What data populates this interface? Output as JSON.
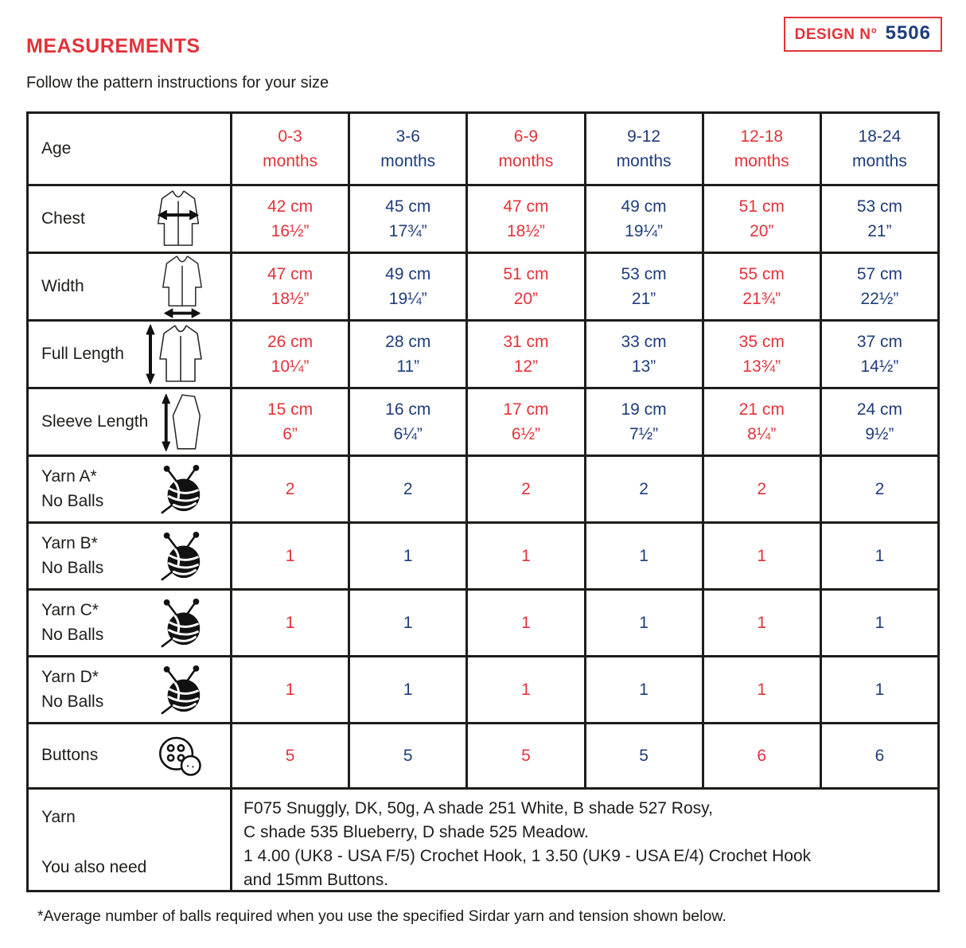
{
  "page": {
    "title": "MEASUREMENTS",
    "subtitle": "Follow the pattern instructions for your size",
    "design_box": {
      "label": "DESIGN N°",
      "number": "5506"
    },
    "footnote": "*Average number of balls required when you use the specified Sirdar yarn and tension shown below."
  },
  "colors": {
    "red": "#e2333a",
    "navy": "#1e3d7b",
    "ink": "#1d1d1b"
  },
  "icons": [
    "jacket-chest-arrow-icon",
    "jacket-width-arrow-icon",
    "jacket-length-arrow-icon",
    "sleeve-length-arrow-icon",
    "yarn-ball-icon",
    "buttons-icon"
  ],
  "table": {
    "age_row": {
      "label": "Age",
      "columns": [
        {
          "range": "0-3",
          "unit": "months"
        },
        {
          "range": "3-6",
          "unit": "months"
        },
        {
          "range": "6-9",
          "unit": "months"
        },
        {
          "range": "9-12",
          "unit": "months"
        },
        {
          "range": "12-18",
          "unit": "months"
        },
        {
          "range": "18-24",
          "unit": "months"
        }
      ]
    },
    "measurement_rows": [
      {
        "label": "Chest",
        "icon": "jacket-chest-arrow-icon",
        "values": [
          {
            "cm": "42 cm",
            "in": "16½”"
          },
          {
            "cm": "45 cm",
            "in": "17¾”"
          },
          {
            "cm": "47 cm",
            "in": "18½”"
          },
          {
            "cm": "49 cm",
            "in": "19¼”"
          },
          {
            "cm": "51 cm",
            "in": "20”"
          },
          {
            "cm": "53 cm",
            "in": "21”"
          }
        ]
      },
      {
        "label": "Width",
        "icon": "jacket-width-arrow-icon",
        "values": [
          {
            "cm": "47 cm",
            "in": "18½”"
          },
          {
            "cm": "49 cm",
            "in": "19¼”"
          },
          {
            "cm": "51 cm",
            "in": "20”"
          },
          {
            "cm": "53 cm",
            "in": "21”"
          },
          {
            "cm": "55 cm",
            "in": "21¾”"
          },
          {
            "cm": "57 cm",
            "in": "22½”"
          }
        ]
      },
      {
        "label": "Full Length",
        "icon": "jacket-length-arrow-icon",
        "values": [
          {
            "cm": "26 cm",
            "in": "10¼”"
          },
          {
            "cm": "28 cm",
            "in": "11”"
          },
          {
            "cm": "31 cm",
            "in": "12”"
          },
          {
            "cm": "33 cm",
            "in": "13”"
          },
          {
            "cm": "35 cm",
            "in": "13¾”"
          },
          {
            "cm": "37 cm",
            "in": "14½”"
          }
        ]
      },
      {
        "label": "Sleeve Length",
        "icon": "sleeve-length-arrow-icon",
        "values": [
          {
            "cm": "15 cm",
            "in": "6”"
          },
          {
            "cm": "16 cm",
            "in": "6¼”"
          },
          {
            "cm": "17 cm",
            "in": "6½”"
          },
          {
            "cm": "19 cm",
            "in": "7½”"
          },
          {
            "cm": "21 cm",
            "in": "8¼”"
          },
          {
            "cm": "24 cm",
            "in": "9½”"
          }
        ]
      }
    ],
    "yarn_rows": [
      {
        "label_line1": "Yarn A*",
        "label_line2": "No Balls",
        "icon": "yarn-ball-icon",
        "values": [
          "2",
          "2",
          "2",
          "2",
          "2",
          "2"
        ]
      },
      {
        "label_line1": "Yarn B*",
        "label_line2": "No Balls",
        "icon": "yarn-ball-icon",
        "values": [
          "1",
          "1",
          "1",
          "1",
          "1",
          "1"
        ]
      },
      {
        "label_line1": "Yarn C*",
        "label_line2": "No Balls",
        "icon": "yarn-ball-icon",
        "values": [
          "1",
          "1",
          "1",
          "1",
          "1",
          "1"
        ]
      },
      {
        "label_line1": "Yarn D*",
        "label_line2": "No Balls",
        "icon": "yarn-ball-icon",
        "values": [
          "1",
          "1",
          "1",
          "1",
          "1",
          "1"
        ]
      }
    ],
    "buttons_row": {
      "label": "Buttons",
      "icon": "buttons-icon",
      "values": [
        "5",
        "5",
        "5",
        "5",
        "6",
        "6"
      ]
    },
    "info_row": {
      "label_top": "Yarn",
      "label_bottom": "You also need",
      "lines": [
        "F075 Snuggly, DK, 50g, A shade 251 White, B shade 527 Rosy,",
        "C shade 535 Blueberry, D shade 525 Meadow.",
        "1 4.00 (UK8 - USA F/5) Crochet Hook, 1 3.50 (UK9 - USA E/4) Crochet Hook",
        "and 15mm Buttons."
      ]
    }
  }
}
